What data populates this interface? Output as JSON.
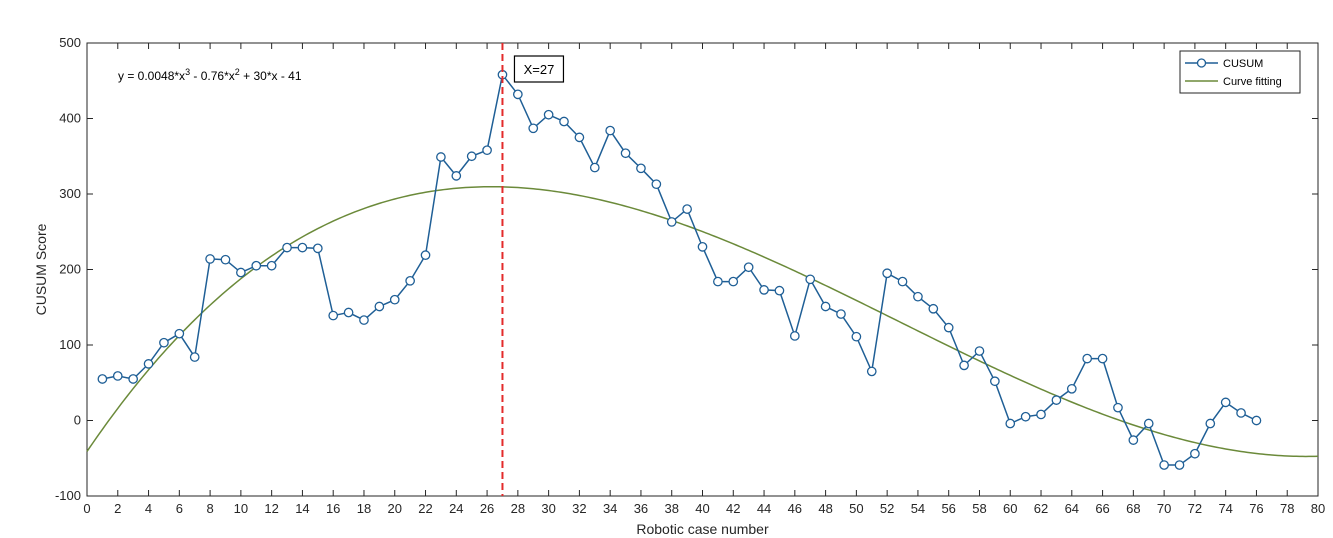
{
  "chart_data": {
    "type": "line",
    "xlabel": "Robotic case number",
    "ylabel": "CUSUM Score",
    "xlim": [
      0,
      80
    ],
    "ylim": [
      -100,
      500
    ],
    "xticks": [
      0,
      2,
      4,
      6,
      8,
      10,
      12,
      14,
      16,
      18,
      20,
      22,
      24,
      26,
      28,
      30,
      32,
      34,
      36,
      38,
      40,
      42,
      44,
      46,
      48,
      50,
      52,
      54,
      56,
      58,
      60,
      62,
      64,
      66,
      68,
      70,
      72,
      74,
      76,
      78,
      80
    ],
    "yticks": [
      -100,
      0,
      100,
      200,
      300,
      400,
      500
    ],
    "grid": false,
    "legend_location": "top-right",
    "equation": {
      "prefix": "y = 0.0048*x",
      "exp1": "3",
      "mid": " - 0.76*x",
      "exp2": "2",
      "suffix": " + 30*x - 41"
    },
    "annotation": {
      "label": "X=27",
      "x": 27
    },
    "colors": {
      "cusum": "#1f5f96",
      "fit": "#6b8a3a",
      "marker_line": "#e32b2b"
    },
    "series": [
      {
        "name": "CUSUM",
        "x": [
          1,
          2,
          3,
          4,
          5,
          6,
          7,
          8,
          9,
          10,
          11,
          12,
          13,
          14,
          15,
          16,
          17,
          18,
          19,
          20,
          21,
          22,
          23,
          24,
          25,
          26,
          27,
          28,
          29,
          30,
          31,
          32,
          33,
          34,
          35,
          36,
          37,
          38,
          39,
          40,
          41,
          42,
          43,
          44,
          45,
          46,
          47,
          48,
          49,
          50,
          51,
          52,
          53,
          54,
          55,
          56,
          57,
          58,
          59,
          60,
          61,
          62,
          63,
          64,
          65,
          66,
          67,
          68,
          69,
          70,
          71,
          72,
          73,
          74,
          75,
          76
        ],
        "values": [
          55,
          59,
          55,
          75,
          103,
          115,
          84,
          214,
          213,
          196,
          205,
          205,
          229,
          229,
          228,
          139,
          143,
          133,
          151,
          160,
          185,
          219,
          349,
          324,
          350,
          358,
          458,
          432,
          387,
          405,
          396,
          375,
          335,
          384,
          354,
          334,
          313,
          263,
          280,
          230,
          184,
          184,
          203,
          173,
          172,
          112,
          187,
          151,
          141,
          111,
          65,
          195,
          184,
          164,
          148,
          123,
          73,
          92,
          52,
          -4,
          5,
          8,
          27,
          42,
          82,
          82,
          17,
          -26,
          -4,
          -59,
          -59,
          -44,
          -4,
          24,
          10,
          0
        ]
      },
      {
        "name": "Curve fitting",
        "formula": "0.0048*x^3 - 0.76*x^2 + 30*x - 41",
        "x_range": [
          0,
          80
        ]
      }
    ]
  }
}
